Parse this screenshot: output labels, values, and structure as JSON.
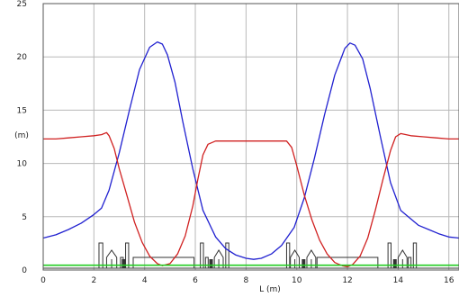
{
  "chart_data": {
    "type": "line",
    "xlabel": "L (m)",
    "ylabel": "(m)",
    "xlim": [
      0,
      16.4
    ],
    "ylim": [
      0,
      25
    ],
    "x_ticks": [
      "0",
      "2",
      "4",
      "6",
      "8",
      "10",
      "12",
      "14",
      "16"
    ],
    "y_ticks": [
      "0",
      "5",
      "10",
      "15",
      "20",
      "25"
    ],
    "grid": true,
    "legend": "none",
    "series": [
      {
        "color": "#2020d0",
        "x": [
          0,
          0.5,
          1,
          1.5,
          2,
          2.3,
          2.6,
          3.0,
          3.4,
          3.8,
          4.2,
          4.5,
          4.7,
          4.9,
          5.2,
          5.5,
          5.9,
          6.3,
          6.8,
          7.2,
          7.6,
          8.0,
          8.3,
          8.6,
          9.0,
          9.4,
          9.9,
          10.3,
          10.7,
          11.1,
          11.5,
          11.9,
          12.1,
          12.3,
          12.6,
          12.9,
          13.3,
          13.7,
          14.1,
          14.5,
          14.8,
          15.2,
          15.6,
          16.0,
          16.4
        ],
        "y": [
          3.0,
          3.3,
          3.8,
          4.4,
          5.2,
          5.8,
          7.5,
          11.0,
          15.0,
          18.8,
          20.9,
          21.4,
          21.2,
          20.2,
          17.6,
          14.0,
          9.5,
          5.6,
          3.1,
          2.0,
          1.4,
          1.1,
          1.0,
          1.1,
          1.5,
          2.3,
          4.0,
          6.8,
          10.5,
          14.6,
          18.3,
          20.8,
          21.3,
          21.1,
          19.8,
          17.0,
          12.5,
          8.2,
          5.6,
          4.8,
          4.2,
          3.8,
          3.4,
          3.1,
          3.0
        ]
      },
      {
        "color": "#d02020",
        "x": [
          0,
          0.5,
          1,
          1.5,
          2,
          2.3,
          2.5,
          2.6,
          2.8,
          3.0,
          3.3,
          3.6,
          3.9,
          4.2,
          4.5,
          4.7,
          5.0,
          5.3,
          5.6,
          5.9,
          6.1,
          6.3,
          6.5,
          6.8,
          7.5,
          8.2,
          9.0,
          9.6,
          9.8,
          10.0,
          10.3,
          10.6,
          10.9,
          11.2,
          11.5,
          11.8,
          12.0,
          12.2,
          12.5,
          12.8,
          13.1,
          13.4,
          13.7,
          13.9,
          14.1,
          14.5,
          15.0,
          15.5,
          16.0,
          16.4
        ],
        "y": [
          12.3,
          12.3,
          12.4,
          12.5,
          12.6,
          12.7,
          12.9,
          12.6,
          11.4,
          9.5,
          7.0,
          4.5,
          2.6,
          1.3,
          0.6,
          0.4,
          0.6,
          1.5,
          3.2,
          6.0,
          8.5,
          10.8,
          11.8,
          12.1,
          12.1,
          12.1,
          12.1,
          12.1,
          11.5,
          9.8,
          7.0,
          4.7,
          2.8,
          1.5,
          0.7,
          0.4,
          0.3,
          0.5,
          1.3,
          3.0,
          5.6,
          8.5,
          11.2,
          12.5,
          12.8,
          12.6,
          12.5,
          12.4,
          12.3,
          12.3
        ]
      },
      {
        "color": "#22cc22",
        "x": [
          0,
          16.4
        ],
        "y": [
          0.45,
          0.45
        ]
      }
    ],
    "lattice_elements": [
      {
        "kind": "tall",
        "x": 2.2,
        "w": 0.15
      },
      {
        "kind": "arch",
        "x": 2.5,
        "w": 0.4
      },
      {
        "kind": "short",
        "x": 3.05,
        "w": 0.1
      },
      {
        "kind": "marker",
        "x": 3.1,
        "w": 0.12
      },
      {
        "kind": "tall",
        "x": 3.25,
        "w": 0.12
      },
      {
        "kind": "bend",
        "x": 3.55,
        "w": 2.4
      },
      {
        "kind": "tall",
        "x": 6.2,
        "w": 0.12
      },
      {
        "kind": "short",
        "x": 6.4,
        "w": 0.1
      },
      {
        "kind": "marker",
        "x": 6.55,
        "w": 0.12
      },
      {
        "kind": "arch",
        "x": 6.75,
        "w": 0.35
      },
      {
        "kind": "tall",
        "x": 7.2,
        "w": 0.12
      },
      {
        "kind": "tall",
        "x": 9.6,
        "w": 0.12
      },
      {
        "kind": "arch",
        "x": 9.75,
        "w": 0.35
      },
      {
        "kind": "marker",
        "x": 10.2,
        "w": 0.12
      },
      {
        "kind": "arch",
        "x": 10.4,
        "w": 0.35
      },
      {
        "kind": "bend",
        "x": 10.8,
        "w": 2.4
      },
      {
        "kind": "tall",
        "x": 13.6,
        "w": 0.12
      },
      {
        "kind": "marker",
        "x": 13.8,
        "w": 0.12
      },
      {
        "kind": "arch",
        "x": 14.0,
        "w": 0.35
      },
      {
        "kind": "short",
        "x": 14.4,
        "w": 0.1
      },
      {
        "kind": "tall",
        "x": 14.6,
        "w": 0.12
      }
    ]
  }
}
